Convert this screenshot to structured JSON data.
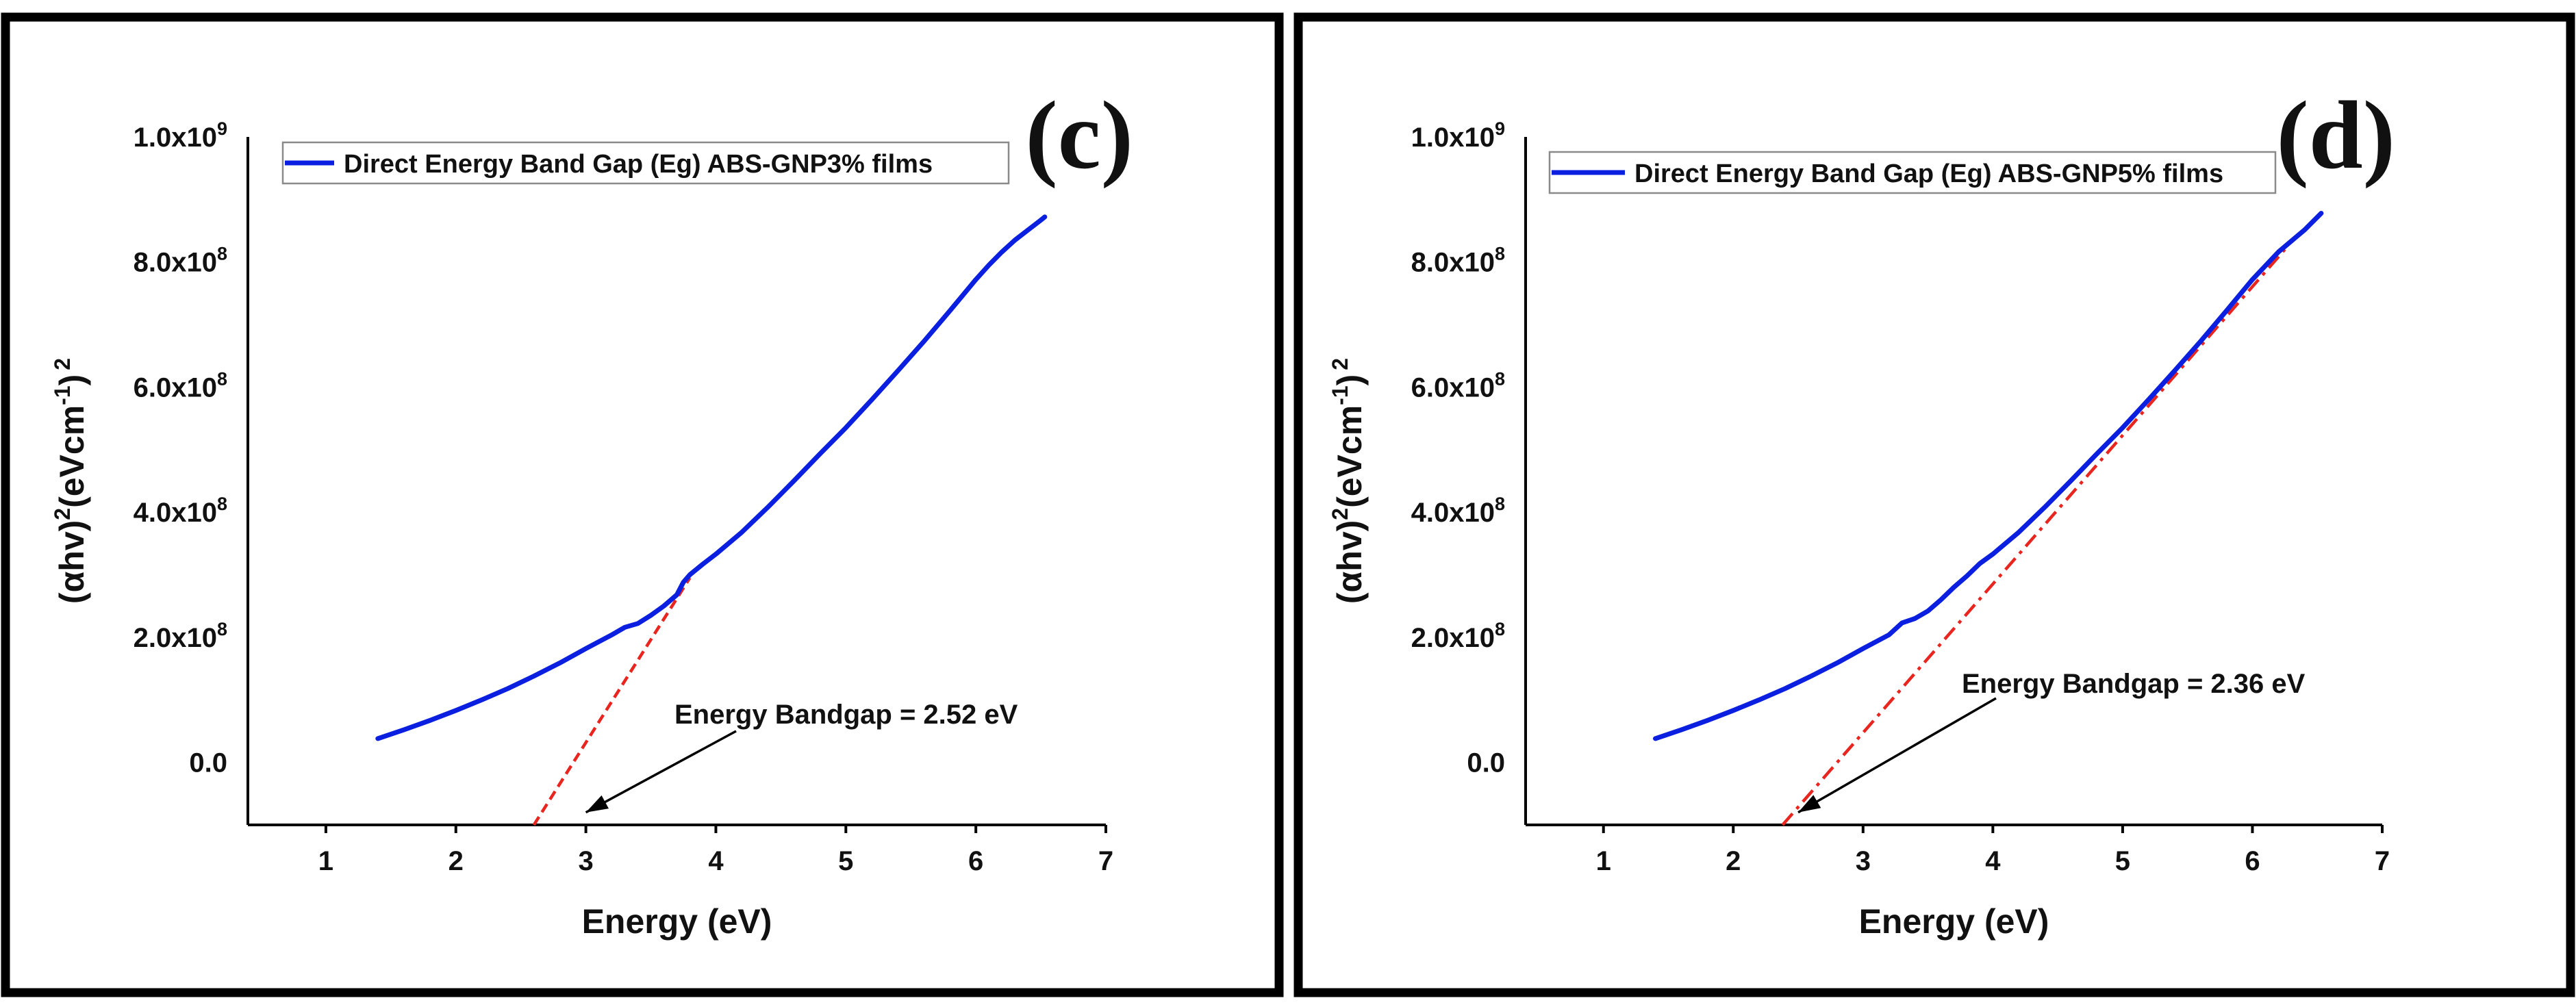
{
  "colors": {
    "data_line": "#0a1fe0",
    "fit_line": "#e8251f",
    "text": "#111111",
    "frame": "#000000"
  },
  "chart_data": [
    {
      "type": "line",
      "panel_label": "(c)",
      "xlabel": "Energy (eV)",
      "ylabel": {
        "base": "(αhv)",
        "sup1": "2",
        "mid": "(eVcm",
        "sup2": "-1",
        "end": ")",
        "sup3": "2"
      },
      "xlim": [
        0.4,
        7
      ],
      "ylim": [
        -100000000,
        1000000000
      ],
      "xticks": [
        {
          "value": 1,
          "label": "1"
        },
        {
          "value": 2,
          "label": "2"
        },
        {
          "value": 3,
          "label": "3"
        },
        {
          "value": 4,
          "label": "4"
        },
        {
          "value": 5,
          "label": "5"
        },
        {
          "value": 6,
          "label": "6"
        },
        {
          "value": 7,
          "label": "7"
        }
      ],
      "yticks": [
        {
          "value": 0,
          "label": "0.0",
          "exp": ""
        },
        {
          "value": 200000000,
          "label": "2.0x10",
          "exp": "8"
        },
        {
          "value": 400000000,
          "label": "4.0x10",
          "exp": "8"
        },
        {
          "value": 600000000,
          "label": "6.0x10",
          "exp": "8"
        },
        {
          "value": 800000000,
          "label": "8.0x10",
          "exp": "8"
        },
        {
          "value": 1000000000,
          "label": "1.0x10",
          "exp": "9"
        }
      ],
      "legend": {
        "label": "Direct Energy Band Gap (Eg) ABS-GNP3% films",
        "position": "top-left"
      },
      "series": [
        {
          "name": "Direct Energy Band Gap (Eg) ABS-GNP3% films",
          "x": [
            1.4,
            1.6,
            1.8,
            2.0,
            2.2,
            2.4,
            2.6,
            2.8,
            3.0,
            3.2,
            3.3,
            3.4,
            3.5,
            3.6,
            3.7,
            3.75,
            3.8,
            3.9,
            4.0,
            4.2,
            4.4,
            4.6,
            4.8,
            5.0,
            5.2,
            5.4,
            5.6,
            5.8,
            6.0,
            6.1,
            6.2,
            6.3,
            6.4,
            6.5,
            6.53
          ],
          "y": [
            38000000,
            52000000,
            67000000,
            83000000,
            100000000,
            118000000,
            138000000,
            159000000,
            182000000,
            204000000,
            216000000,
            222000000,
            235000000,
            250000000,
            268000000,
            288000000,
            300000000,
            317000000,
            333000000,
            368000000,
            408000000,
            450000000,
            493000000,
            535000000,
            580000000,
            626000000,
            673000000,
            722000000,
            772000000,
            795000000,
            816000000,
            835000000,
            851000000,
            867000000,
            872000000
          ]
        }
      ],
      "fit_line": {
        "style": "dashed",
        "x": [
          2.6,
          3.8
        ],
        "y": [
          -100000000,
          295000000
        ]
      },
      "annotation": {
        "text": "Energy Bandgap = 2.52 eV",
        "anchor_x": 3.0,
        "anchor_y": -80000000
      }
    },
    {
      "type": "line",
      "panel_label": "(d)",
      "xlabel": "Energy (eV)",
      "ylabel": {
        "base": "(αhv)",
        "sup1": "2",
        "mid": "(eVcm",
        "sup2": "-1",
        "end": ")",
        "sup3": "2"
      },
      "xlim": [
        0.4,
        7
      ],
      "ylim": [
        -100000000,
        1000000000
      ],
      "xticks": [
        {
          "value": 1,
          "label": "1"
        },
        {
          "value": 2,
          "label": "2"
        },
        {
          "value": 3,
          "label": "3"
        },
        {
          "value": 4,
          "label": "4"
        },
        {
          "value": 5,
          "label": "5"
        },
        {
          "value": 6,
          "label": "6"
        },
        {
          "value": 7,
          "label": "7"
        }
      ],
      "yticks": [
        {
          "value": 0,
          "label": "0.0",
          "exp": ""
        },
        {
          "value": 200000000,
          "label": "2.0x10",
          "exp": "8"
        },
        {
          "value": 400000000,
          "label": "4.0x10",
          "exp": "8"
        },
        {
          "value": 600000000,
          "label": "6.0x10",
          "exp": "8"
        },
        {
          "value": 800000000,
          "label": "8.0x10",
          "exp": "8"
        },
        {
          "value": 1000000000,
          "label": "1.0x10",
          "exp": "9"
        }
      ],
      "legend": {
        "label": "Direct Energy Band Gap (Eg) ABS-GNP5% films",
        "position": "top-left"
      },
      "series": [
        {
          "name": "Direct Energy Band Gap (Eg) ABS-GNP5% films",
          "x": [
            1.4,
            1.6,
            1.8,
            2.0,
            2.2,
            2.4,
            2.6,
            2.8,
            3.0,
            3.2,
            3.3,
            3.4,
            3.5,
            3.6,
            3.7,
            3.8,
            3.9,
            4.0,
            4.2,
            4.4,
            4.6,
            4.8,
            5.0,
            5.2,
            5.4,
            5.6,
            5.8,
            6.0,
            6.2,
            6.4,
            6.53
          ],
          "y": [
            38000000,
            52000000,
            67000000,
            83000000,
            100000000,
            118000000,
            138000000,
            159000000,
            182000000,
            204000000,
            223000000,
            230000000,
            242000000,
            260000000,
            280000000,
            298000000,
            318000000,
            333000000,
            368000000,
            408000000,
            450000000,
            493000000,
            535000000,
            580000000,
            626000000,
            673000000,
            722000000,
            772000000,
            816000000,
            851000000,
            878000000
          ]
        }
      ],
      "fit_line": {
        "style": "dash-dot",
        "x": [
          2.38,
          6.25
        ],
        "y": [
          -100000000,
          820000000
        ]
      },
      "annotation": {
        "text": "Energy Bandgap = 2.36 eV",
        "anchor_x": 2.5,
        "anchor_y": -80000000
      }
    }
  ]
}
